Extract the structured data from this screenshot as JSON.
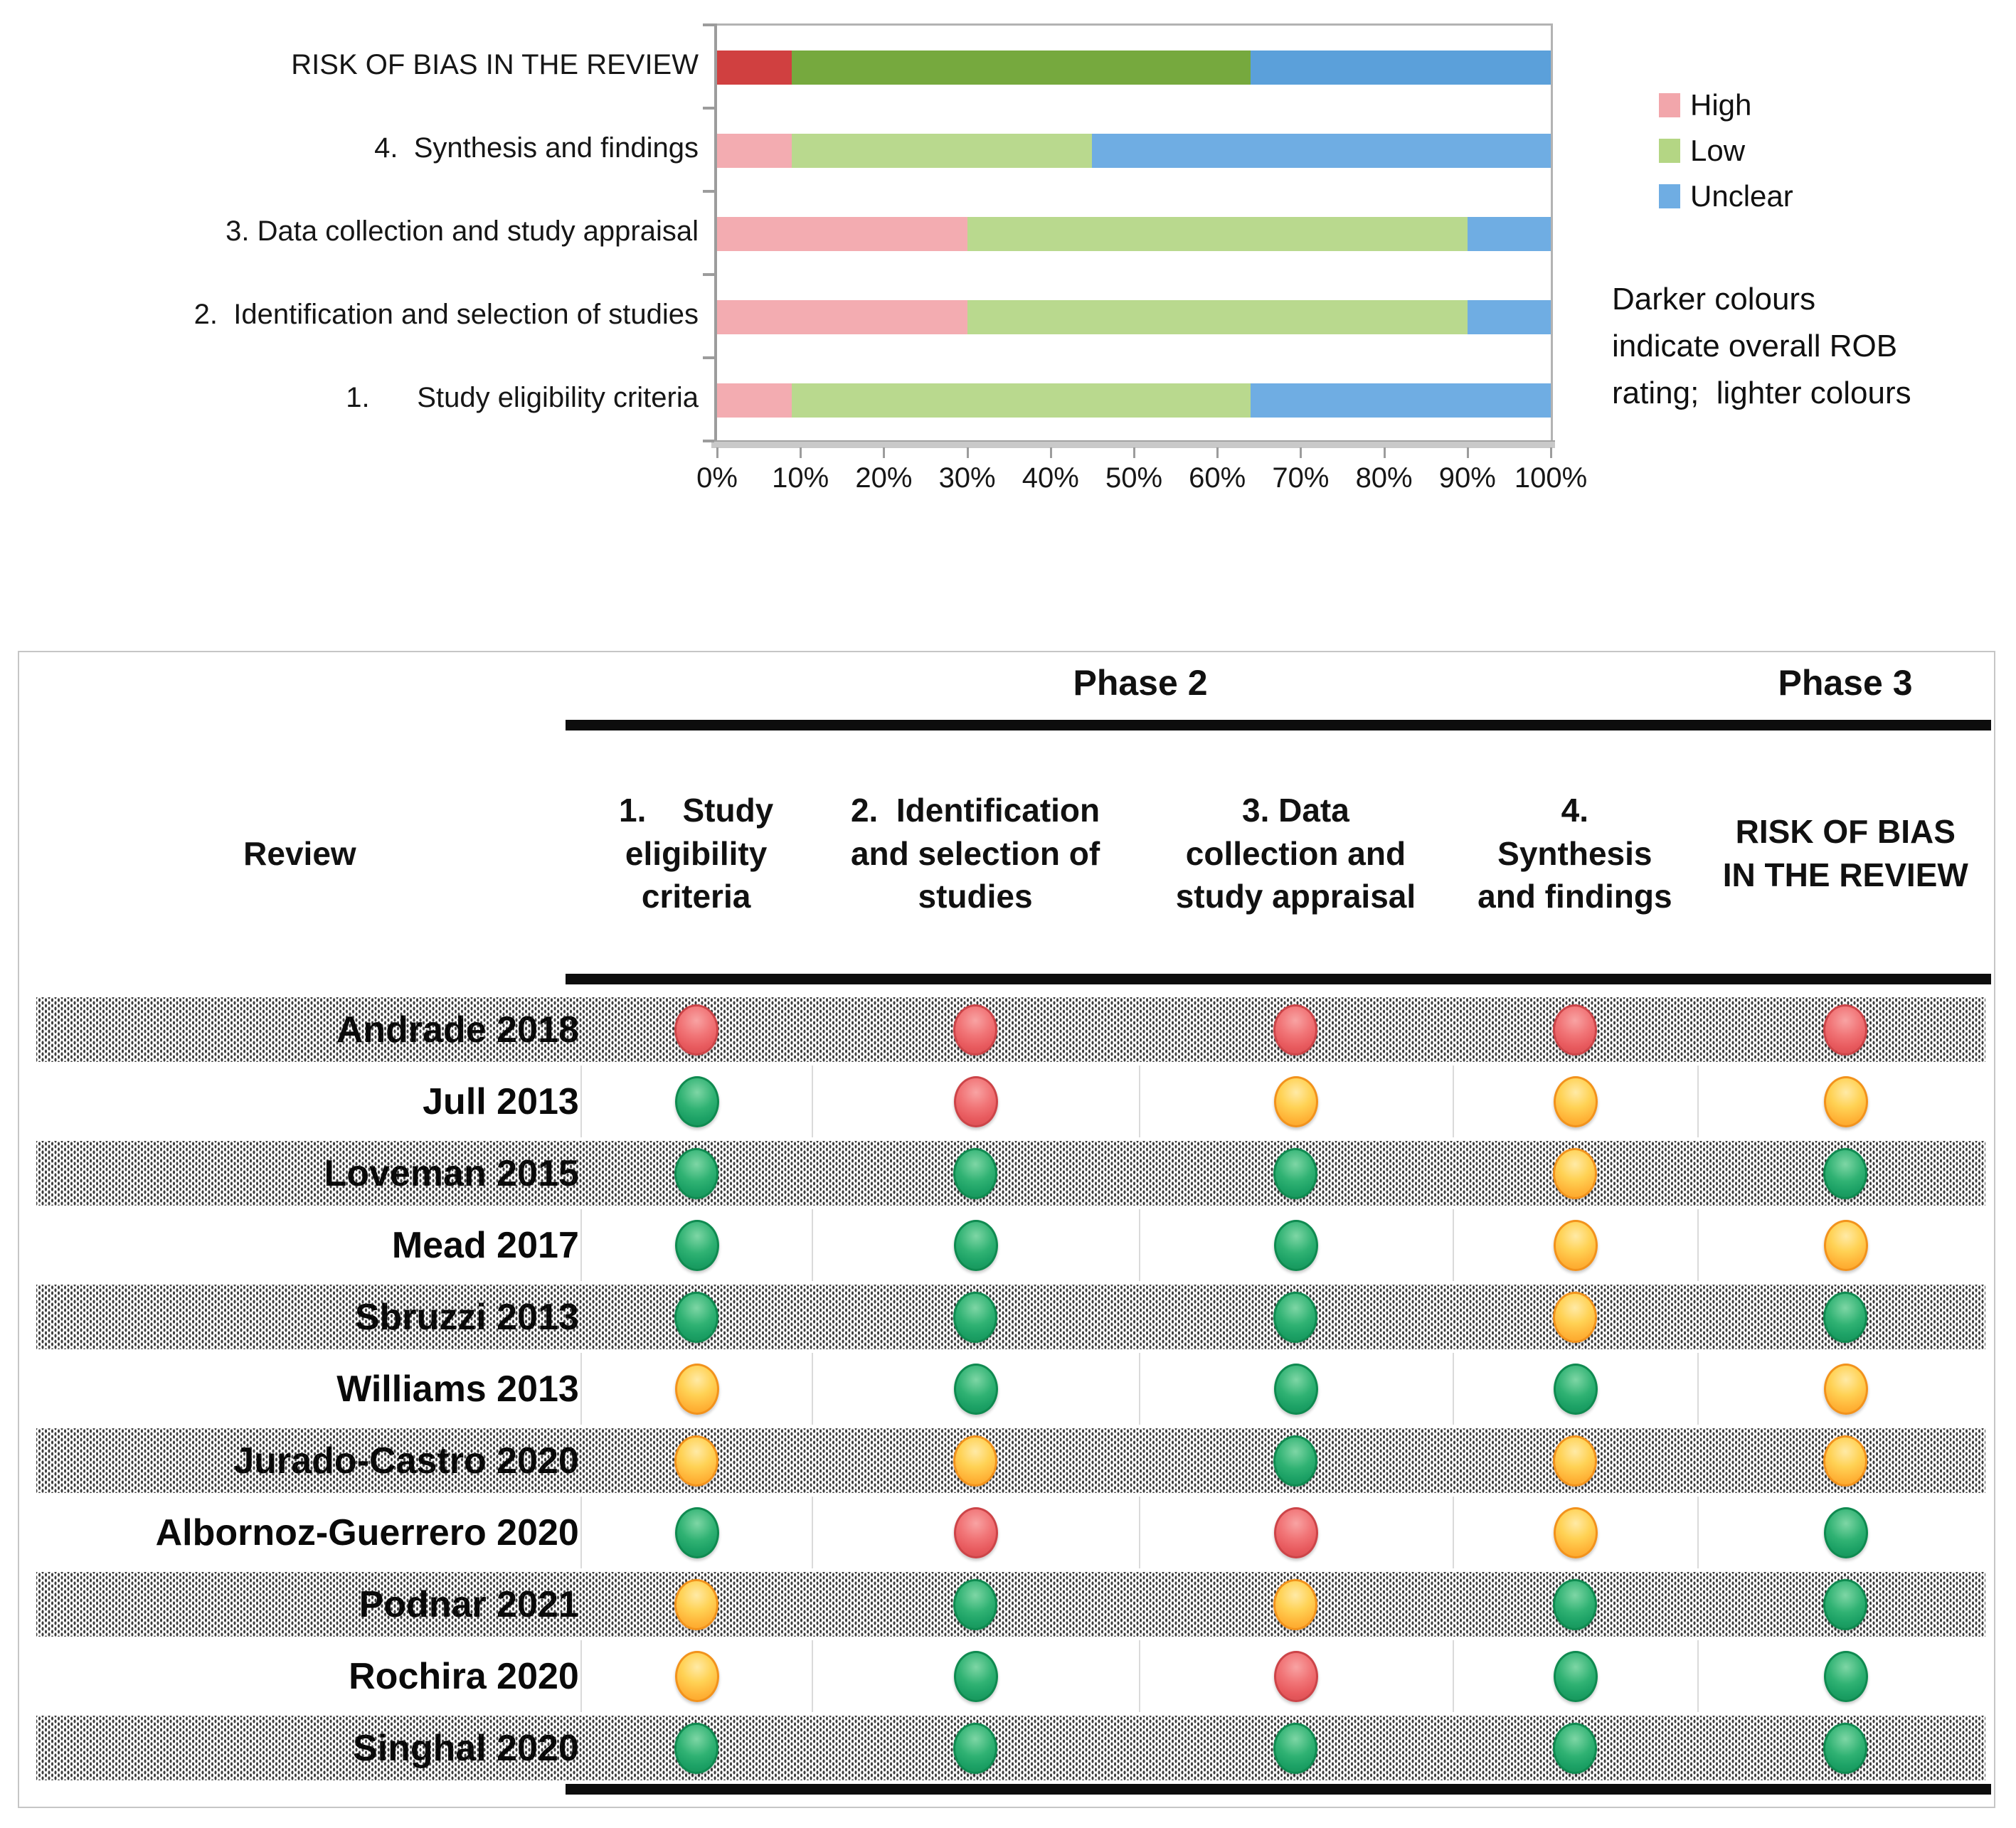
{
  "chart_data": {
    "type": "bar",
    "orientation": "horizontal",
    "stacked": true,
    "title": "",
    "categories": [
      "RISK OF BIAS IN THE REVIEW",
      "4.  Synthesis and findings",
      "3. Data collection and study appraisal",
      "2.  Identification and selection of studies",
      "1.      Study eligibility criteria"
    ],
    "series": [
      {
        "name": "High",
        "values": [
          9,
          9,
          30,
          30,
          9
        ]
      },
      {
        "name": "Low",
        "values": [
          55,
          36,
          60,
          60,
          55
        ]
      },
      {
        "name": "Unclear",
        "values": [
          36,
          55,
          10,
          10,
          36
        ]
      }
    ],
    "xlabel": "",
    "ylabel": "",
    "xlim": [
      0,
      100
    ],
    "x_tick_labels": [
      "0%",
      "10%",
      "20%",
      "30%",
      "40%",
      "50%",
      "60%",
      "70%",
      "80%",
      "90%",
      "100%"
    ],
    "grid": false,
    "legend_position": "right",
    "annotation": "Darker colours indicate overall ROB rating;  lighter colours"
  },
  "chart": {
    "legend": [
      {
        "label": "High",
        "color": "#f2a6ab"
      },
      {
        "label": "Low",
        "color": "#b4d684"
      },
      {
        "label": "Unclear",
        "color": "#6fade3"
      }
    ],
    "note": "Darker colours\nindicate overall ROB\nrating;  lighter colours",
    "colors": {
      "overall": {
        "High": "#d04040",
        "Low": "#76a93e",
        "Unclear": "#5ba0da"
      },
      "phase": {
        "High": "#f3acb1",
        "Low": "#b9d98e",
        "Unclear": "#6fade3"
      }
    }
  },
  "table": {
    "phase2_label": "Phase 2",
    "phase3_label": "Phase 3",
    "review_header": "Review",
    "criteria_headers": [
      "1.    Study\neligibility\ncriteria",
      "2.  Identification\nand selection of\nstudies",
      "3. Data\ncollection and\nstudy appraisal",
      "4.\nSynthesis\nand findings",
      "RISK OF BIAS\nIN THE REVIEW"
    ],
    "dot_colors": {
      "high": "#ee5f63",
      "low": "#22aa67",
      "unclear": "#ffc145"
    },
    "rating_legend": {
      "high": "High",
      "low": "Low",
      "unclear": "Unclear"
    },
    "rows": [
      {
        "review": "Andrade 2018",
        "shaded": true,
        "ratings": [
          "high",
          "high",
          "high",
          "high",
          "high"
        ]
      },
      {
        "review": "Jull 2013",
        "shaded": false,
        "ratings": [
          "low",
          "high",
          "unclear",
          "unclear",
          "unclear"
        ]
      },
      {
        "review": "Loveman 2015",
        "shaded": true,
        "ratings": [
          "low",
          "low",
          "low",
          "unclear",
          "low"
        ]
      },
      {
        "review": "Mead 2017",
        "shaded": false,
        "ratings": [
          "low",
          "low",
          "low",
          "unclear",
          "unclear"
        ]
      },
      {
        "review": "Sbruzzi 2013",
        "shaded": true,
        "ratings": [
          "low",
          "low",
          "low",
          "unclear",
          "low"
        ]
      },
      {
        "review": "Williams 2013",
        "shaded": false,
        "ratings": [
          "unclear",
          "low",
          "low",
          "low",
          "unclear"
        ]
      },
      {
        "review": "Jurado-Castro 2020",
        "shaded": true,
        "ratings": [
          "unclear",
          "unclear",
          "low",
          "unclear",
          "unclear"
        ]
      },
      {
        "review": "Albornoz-Guerrero 2020",
        "shaded": false,
        "ratings": [
          "low",
          "high",
          "high",
          "unclear",
          "low"
        ]
      },
      {
        "review": "Podnar 2021",
        "shaded": true,
        "ratings": [
          "unclear",
          "low",
          "unclear",
          "low",
          "low"
        ]
      },
      {
        "review": "Rochira 2020",
        "shaded": false,
        "ratings": [
          "unclear",
          "low",
          "high",
          "low",
          "low"
        ]
      },
      {
        "review": "Singhal 2020",
        "shaded": true,
        "ratings": [
          "low",
          "low",
          "low",
          "low",
          "low"
        ]
      }
    ]
  }
}
